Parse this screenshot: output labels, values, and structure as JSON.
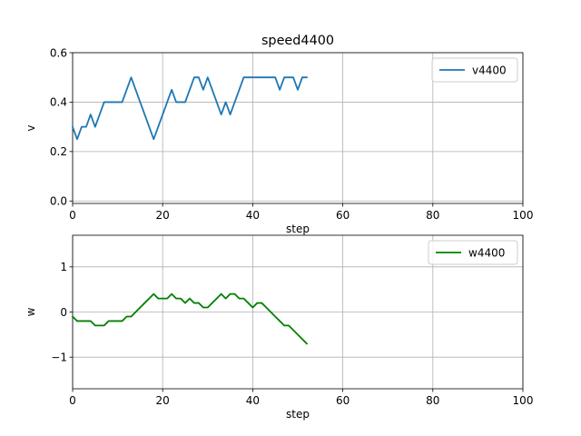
{
  "figure": {
    "title": "speed4400"
  },
  "chart_data": [
    {
      "type": "line",
      "title": "speed4400",
      "xlabel": "step",
      "ylabel": "v",
      "xlim": [
        0,
        100
      ],
      "ylim": [
        -0.01,
        0.6
      ],
      "xticks": [
        0,
        20,
        40,
        60,
        80,
        100
      ],
      "yticks": [
        0.0,
        0.2,
        0.4,
        0.6
      ],
      "xtick_labels": [
        "0",
        "20",
        "40",
        "60",
        "80",
        "100"
      ],
      "ytick_labels": [
        "0.0",
        "0.2",
        "0.4",
        "0.6"
      ],
      "grid": true,
      "legend": "top-right",
      "series": [
        {
          "name": "v4400",
          "color": "#1f77b4",
          "x": [
            0,
            1,
            2,
            3,
            4,
            5,
            6,
            7,
            8,
            9,
            10,
            11,
            12,
            13,
            14,
            15,
            16,
            17,
            18,
            19,
            20,
            21,
            22,
            23,
            24,
            25,
            26,
            27,
            28,
            29,
            30,
            31,
            32,
            33,
            34,
            35,
            36,
            37,
            38,
            39,
            40,
            41,
            42,
            43,
            44,
            45,
            46,
            47,
            48,
            49,
            50,
            51,
            52
          ],
          "y": [
            0.3,
            0.25,
            0.3,
            0.3,
            0.35,
            0.3,
            0.35,
            0.4,
            0.4,
            0.4,
            0.4,
            0.4,
            0.45,
            0.5,
            0.45,
            0.4,
            0.35,
            0.3,
            0.25,
            0.3,
            0.35,
            0.4,
            0.45,
            0.4,
            0.4,
            0.4,
            0.45,
            0.5,
            0.5,
            0.45,
            0.5,
            0.45,
            0.4,
            0.35,
            0.4,
            0.35,
            0.4,
            0.45,
            0.5,
            0.5,
            0.5,
            0.5,
            0.5,
            0.5,
            0.5,
            0.5,
            0.45,
            0.5,
            0.5,
            0.5,
            0.45,
            0.5,
            0.5
          ]
        }
      ]
    },
    {
      "type": "line",
      "title": "",
      "xlabel": "step",
      "ylabel": "w",
      "xlim": [
        0,
        100
      ],
      "ylim": [
        -1.7,
        1.7
      ],
      "xticks": [
        0,
        20,
        40,
        60,
        80,
        100
      ],
      "yticks": [
        -1,
        0,
        1
      ],
      "xtick_labels": [
        "0",
        "20",
        "40",
        "60",
        "80",
        "100"
      ],
      "ytick_labels": [
        "−1",
        "0",
        "1"
      ],
      "grid": true,
      "legend": "top-right",
      "series": [
        {
          "name": "w4400",
          "color": "#008000",
          "x": [
            0,
            1,
            2,
            3,
            4,
            5,
            6,
            7,
            8,
            9,
            10,
            11,
            12,
            13,
            14,
            15,
            16,
            17,
            18,
            19,
            20,
            21,
            22,
            23,
            24,
            25,
            26,
            27,
            28,
            29,
            30,
            31,
            32,
            33,
            34,
            35,
            36,
            37,
            38,
            39,
            40,
            41,
            42,
            43,
            44,
            45,
            46,
            47,
            48,
            49,
            50,
            51,
            52
          ],
          "y": [
            -0.1,
            -0.2,
            -0.2,
            -0.2,
            -0.2,
            -0.3,
            -0.3,
            -0.3,
            -0.2,
            -0.2,
            -0.2,
            -0.2,
            -0.1,
            -0.1,
            0.0,
            0.1,
            0.2,
            0.3,
            0.4,
            0.3,
            0.3,
            0.3,
            0.4,
            0.3,
            0.3,
            0.2,
            0.3,
            0.2,
            0.2,
            0.1,
            0.1,
            0.2,
            0.3,
            0.4,
            0.3,
            0.4,
            0.4,
            0.3,
            0.3,
            0.2,
            0.1,
            0.2,
            0.2,
            0.1,
            0.0,
            -0.1,
            -0.2,
            -0.3,
            -0.3,
            -0.4,
            -0.5,
            -0.6,
            -0.7
          ]
        }
      ]
    }
  ]
}
